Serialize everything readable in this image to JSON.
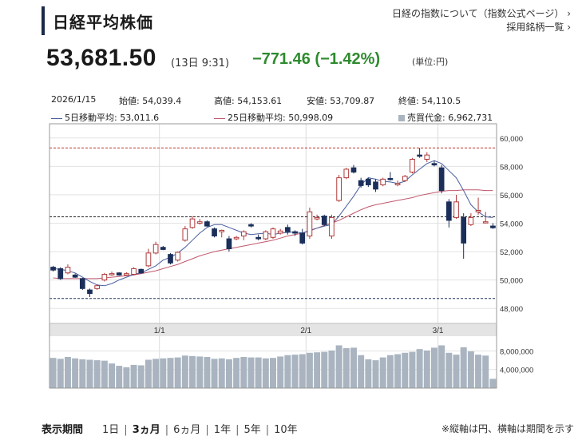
{
  "header": {
    "title": "日経平均株価",
    "link_about": "日経の指数について（指数公式ページ）",
    "link_constituents": "採用銘柄一覧",
    "chevron": "›"
  },
  "quote": {
    "price": "53,681.50",
    "time": "(13日 9:31)",
    "change": "−771.46  (−1.42%)",
    "unit": "(単位:円)",
    "change_color": "#2e8b2e"
  },
  "ohlc": {
    "date": "2026/1/15",
    "open": "始値: 54,039.4",
    "high": "高値: 54,153.61",
    "low": "安値: 53,709.87",
    "close": "終値: 54,110.5"
  },
  "legend": {
    "ma5": "5日移動平均: 53,011.6",
    "ma25": "25日移動平均: 50,998.09",
    "volume": "売買代金: 6,962,731"
  },
  "period": {
    "label": "表示期間",
    "options": [
      "1日",
      "3ヵ月",
      "6ヵ月",
      "1年",
      "5年",
      "10年"
    ],
    "selected": "3ヵ月"
  },
  "note": "※縦軸は円、横軸は期間を示す",
  "chart_data": {
    "type": "candlestick",
    "colors": {
      "up": "#b03a3a",
      "down": "#1b2f5a",
      "ma5": "#4a5f9e",
      "ma25": "#c0586e",
      "volume": "#a9b4c0"
    },
    "y_axis": {
      "ylim": [
        47000,
        61000
      ],
      "ticks": [
        48000,
        50000,
        52000,
        54000,
        56000,
        58000,
        60000
      ],
      "tick_labels": [
        "48,000",
        "50,000",
        "52,000",
        "54,000",
        "56,000",
        "58,000",
        "60,000"
      ]
    },
    "volume_axis": {
      "ylim": [
        0,
        11000000
      ],
      "ticks": [
        4000000,
        8000000
      ],
      "tick_labels": [
        "4,000,000",
        "8,000,000"
      ]
    },
    "x_labels": [
      {
        "label": "1/1",
        "index": 15
      },
      {
        "label": "2/1",
        "index": 35
      },
      {
        "label": "3/1",
        "index": 53
      }
    ],
    "reference_lines": [
      59300,
      54450,
      48700
    ],
    "candles": [
      {
        "o": 50900,
        "h": 51000,
        "l": 50600,
        "c": 50700
      },
      {
        "o": 50800,
        "h": 50900,
        "l": 50000,
        "c": 50100
      },
      {
        "o": 50500,
        "h": 51100,
        "l": 50400,
        "c": 50900
      },
      {
        "o": 50350,
        "h": 50450,
        "l": 50150,
        "c": 50200
      },
      {
        "o": 50100,
        "h": 50150,
        "l": 49300,
        "c": 49400
      },
      {
        "o": 49300,
        "h": 49400,
        "l": 48800,
        "c": 49050
      },
      {
        "o": 49400,
        "h": 49700,
        "l": 49300,
        "c": 49600
      },
      {
        "o": 50000,
        "h": 50500,
        "l": 49900,
        "c": 50400
      },
      {
        "o": 50400,
        "h": 50600,
        "l": 50300,
        "c": 50450
      },
      {
        "o": 50500,
        "h": 50550,
        "l": 50300,
        "c": 50350
      },
      {
        "o": 50350,
        "h": 50550,
        "l": 50300,
        "c": 50450
      },
      {
        "o": 50400,
        "h": 50900,
        "l": 50350,
        "c": 50800
      },
      {
        "o": 50750,
        "h": 50800,
        "l": 50450,
        "c": 50500
      },
      {
        "o": 51000,
        "h": 52200,
        "l": 50900,
        "c": 51900
      },
      {
        "o": 51900,
        "h": 52700,
        "l": 51800,
        "c": 52500
      },
      {
        "o": 52300,
        "h": 52400,
        "l": 52100,
        "c": 52150
      },
      {
        "o": 51800,
        "h": 51900,
        "l": 51100,
        "c": 51200
      },
      {
        "o": 51400,
        "h": 52000,
        "l": 51300,
        "c": 51950
      },
      {
        "o": 52800,
        "h": 53800,
        "l": 52700,
        "c": 53600
      },
      {
        "o": 53700,
        "h": 54500,
        "l": 53600,
        "c": 54300
      },
      {
        "o": 54000,
        "h": 54300,
        "l": 53900,
        "c": 54100
      },
      {
        "o": 54100,
        "h": 54200,
        "l": 53750,
        "c": 53800
      },
      {
        "o": 53600,
        "h": 53700,
        "l": 53000,
        "c": 53100
      },
      {
        "o": 53400,
        "h": 53550,
        "l": 53000,
        "c": 53500
      },
      {
        "o": 52900,
        "h": 53100,
        "l": 52000,
        "c": 52200
      },
      {
        "o": 52900,
        "h": 53100,
        "l": 52800,
        "c": 53000
      },
      {
        "o": 53100,
        "h": 53500,
        "l": 52800,
        "c": 53400
      },
      {
        "o": 53900,
        "h": 54000,
        "l": 53700,
        "c": 53800
      },
      {
        "o": 53000,
        "h": 53200,
        "l": 52800,
        "c": 52900
      },
      {
        "o": 52900,
        "h": 53500,
        "l": 52800,
        "c": 53400
      },
      {
        "o": 53000,
        "h": 53700,
        "l": 52900,
        "c": 53600
      },
      {
        "o": 53300,
        "h": 53600,
        "l": 53200,
        "c": 53450
      },
      {
        "o": 53700,
        "h": 53900,
        "l": 53200,
        "c": 53400
      },
      {
        "o": 53400,
        "h": 53500,
        "l": 53100,
        "c": 53300
      },
      {
        "o": 53300,
        "h": 53600,
        "l": 52500,
        "c": 52600
      },
      {
        "o": 53100,
        "h": 55100,
        "l": 52900,
        "c": 54800
      },
      {
        "o": 54300,
        "h": 54600,
        "l": 54200,
        "c": 54400
      },
      {
        "o": 54500,
        "h": 54600,
        "l": 53800,
        "c": 53900
      },
      {
        "o": 53100,
        "h": 54600,
        "l": 52900,
        "c": 54400
      },
      {
        "o": 55600,
        "h": 57400,
        "l": 55500,
        "c": 57200
      },
      {
        "o": 57200,
        "h": 57900,
        "l": 57100,
        "c": 57800
      },
      {
        "o": 57900,
        "h": 58100,
        "l": 57500,
        "c": 57600
      },
      {
        "o": 57000,
        "h": 57200,
        "l": 56500,
        "c": 56650
      },
      {
        "o": 57100,
        "h": 57200,
        "l": 56550,
        "c": 56700
      },
      {
        "o": 56900,
        "h": 57100,
        "l": 56200,
        "c": 56400
      },
      {
        "o": 56700,
        "h": 57200,
        "l": 56600,
        "c": 57100
      },
      {
        "o": 57150,
        "h": 57600,
        "l": 57000,
        "c": 57100
      },
      {
        "o": 56700,
        "h": 57000,
        "l": 56600,
        "c": 56800
      },
      {
        "o": 57000,
        "h": 57400,
        "l": 56900,
        "c": 57300
      },
      {
        "o": 57600,
        "h": 58600,
        "l": 57500,
        "c": 58500
      },
      {
        "o": 58800,
        "h": 59300,
        "l": 58600,
        "c": 58750
      },
      {
        "o": 58500,
        "h": 59000,
        "l": 58300,
        "c": 58800
      },
      {
        "o": 58200,
        "h": 58400,
        "l": 58000,
        "c": 58100
      },
      {
        "o": 57900,
        "h": 58100,
        "l": 56100,
        "c": 56300
      },
      {
        "o": 55500,
        "h": 55700,
        "l": 53700,
        "c": 54200
      },
      {
        "o": 54400,
        "h": 56000,
        "l": 54300,
        "c": 55500
      },
      {
        "o": 54400,
        "h": 54700,
        "l": 51500,
        "c": 52600
      },
      {
        "o": 53900,
        "h": 54700,
        "l": 53800,
        "c": 54400
      },
      {
        "o": 54800,
        "h": 55800,
        "l": 54600,
        "c": 54900
      },
      {
        "o": 54100,
        "h": 54800,
        "l": 54000,
        "c": 54100
      },
      {
        "o": 53800,
        "h": 54000,
        "l": 53600,
        "c": 53680
      }
    ],
    "ma5": [
      50800,
      50750,
      50650,
      50500,
      50200,
      49900,
      49650,
      49600,
      49750,
      50000,
      50200,
      50400,
      50500,
      50750,
      51000,
      51400,
      51600,
      51900,
      52300,
      52800,
      53300,
      53700,
      53900,
      53900,
      53700,
      53500,
      53300,
      53200,
      53250,
      53300,
      53200,
      53300,
      53350,
      53400,
      53300,
      53500,
      53650,
      53800,
      53900,
      54500,
      55200,
      55900,
      56700,
      57200,
      57100,
      56950,
      56900,
      56800,
      56950,
      57400,
      57800,
      58200,
      58400,
      58200,
      57700,
      57200,
      56300,
      55300,
      54800,
      54450,
      54400
    ],
    "ma25": [
      50150,
      50100,
      50100,
      50100,
      50100,
      50100,
      50100,
      50150,
      50200,
      50250,
      50300,
      50350,
      50450,
      50550,
      50650,
      50800,
      50950,
      51100,
      51300,
      51500,
      51700,
      51850,
      52000,
      52100,
      52200,
      52300,
      52400,
      52500,
      52600,
      52700,
      52800,
      52950,
      53100,
      53200,
      53300,
      53450,
      53650,
      53850,
      54000,
      54200,
      54450,
      54700,
      54950,
      55150,
      55300,
      55400,
      55500,
      55600,
      55700,
      55800,
      55950,
      56050,
      56150,
      56250,
      56300,
      56300,
      56350,
      56350,
      56350,
      56300,
      56300
    ],
    "volume": [
      6500000,
      6300000,
      6700000,
      6400000,
      6200000,
      6100000,
      6000000,
      5900000,
      5300000,
      4800000,
      4500000,
      5000000,
      4900000,
      6100000,
      6300000,
      6400000,
      6500000,
      6600000,
      7000000,
      6900000,
      6800000,
      6700000,
      6300000,
      6400000,
      6200000,
      6500000,
      6700000,
      6600000,
      6600000,
      6400000,
      6500000,
      6800000,
      7100000,
      7200000,
      7300000,
      7600000,
      7700000,
      7800000,
      8100000,
      9200000,
      8600000,
      8700000,
      7100000,
      6200000,
      6000000,
      6600000,
      7100000,
      7300000,
      7600000,
      7800000,
      8400000,
      8100000,
      8700000,
      9200000,
      7600000,
      7200000,
      8800000,
      7900000,
      7200000,
      7000000,
      2000000
    ]
  }
}
